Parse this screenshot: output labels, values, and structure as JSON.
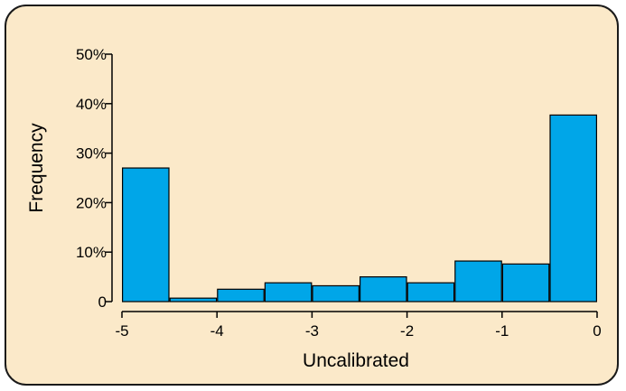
{
  "chart_data": {
    "type": "bar",
    "xlabel": "Uncalibrated",
    "ylabel": "Frequency",
    "xlim": [
      -5,
      0
    ],
    "ylim": [
      0,
      50
    ],
    "x_ticks": [
      {
        "value": -5,
        "label": "-5"
      },
      {
        "value": -4,
        "label": "-4"
      },
      {
        "value": -3,
        "label": "-3"
      },
      {
        "value": -2,
        "label": "-2"
      },
      {
        "value": -1,
        "label": "-1"
      },
      {
        "value": 0,
        "label": "0"
      }
    ],
    "y_ticks": [
      {
        "value": 0,
        "label": "0"
      },
      {
        "value": 10,
        "label": "10%"
      },
      {
        "value": 20,
        "label": "20%"
      },
      {
        "value": 30,
        "label": "30%"
      },
      {
        "value": 40,
        "label": "40%"
      },
      {
        "value": 50,
        "label": "50%"
      }
    ],
    "bins": [
      {
        "start": -5.0,
        "end": -4.5,
        "value": 27.0
      },
      {
        "start": -4.5,
        "end": -4.0,
        "value": 0.7
      },
      {
        "start": -4.0,
        "end": -3.5,
        "value": 2.5
      },
      {
        "start": -3.5,
        "end": -3.0,
        "value": 3.8
      },
      {
        "start": -3.0,
        "end": -2.5,
        "value": 3.2
      },
      {
        "start": -2.5,
        "end": -2.0,
        "value": 5.0
      },
      {
        "start": -2.0,
        "end": -1.5,
        "value": 3.8
      },
      {
        "start": -1.5,
        "end": -1.0,
        "value": 8.2
      },
      {
        "start": -1.0,
        "end": -0.5,
        "value": 7.6
      },
      {
        "start": -0.5,
        "end": 0.0,
        "value": 37.7
      }
    ],
    "grid": false,
    "colors": {
      "bar_fill": "#00a6e8",
      "bar_stroke": "#000000",
      "background": "#fbe9c9"
    }
  }
}
